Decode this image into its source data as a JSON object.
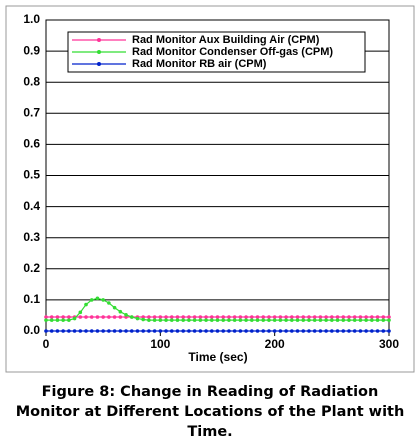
{
  "chart_data": {
    "type": "line",
    "xlabel": "Time (sec)",
    "caption": "Figure 8: Change in Reading of Radiation Monitor at Different Locations of the Plant with Time.",
    "x": [
      0,
      5,
      10,
      15,
      20,
      25,
      30,
      35,
      40,
      45,
      50,
      55,
      60,
      65,
      70,
      75,
      80,
      85,
      90,
      95,
      100,
      105,
      110,
      115,
      120,
      125,
      130,
      135,
      140,
      145,
      150,
      155,
      160,
      165,
      170,
      175,
      180,
      185,
      190,
      195,
      200,
      205,
      210,
      215,
      220,
      225,
      230,
      235,
      240,
      245,
      250,
      255,
      260,
      265,
      270,
      275,
      280,
      285,
      290,
      295,
      300
    ],
    "series": [
      {
        "name": "Rad Monitor Aux Building Air (CPM)",
        "color": "#ff3399",
        "values": [
          0.045,
          0.045,
          0.045,
          0.045,
          0.045,
          0.045,
          0.045,
          0.045,
          0.045,
          0.045,
          0.045,
          0.045,
          0.045,
          0.045,
          0.045,
          0.045,
          0.045,
          0.045,
          0.045,
          0.045,
          0.045,
          0.045,
          0.045,
          0.045,
          0.045,
          0.045,
          0.045,
          0.045,
          0.045,
          0.045,
          0.045,
          0.045,
          0.045,
          0.045,
          0.045,
          0.045,
          0.045,
          0.045,
          0.045,
          0.045,
          0.045,
          0.045,
          0.045,
          0.045,
          0.045,
          0.045,
          0.045,
          0.045,
          0.045,
          0.045,
          0.045,
          0.045,
          0.045,
          0.045,
          0.045,
          0.045,
          0.045,
          0.045,
          0.045,
          0.045,
          0.045
        ]
      },
      {
        "name": "Rad Monitor Condenser Off-gas (CPM)",
        "color": "#33dd33",
        "values": [
          0.035,
          0.035,
          0.035,
          0.035,
          0.035,
          0.04,
          0.06,
          0.085,
          0.1,
          0.105,
          0.1,
          0.09,
          0.075,
          0.062,
          0.052,
          0.045,
          0.04,
          0.037,
          0.035,
          0.035,
          0.035,
          0.035,
          0.035,
          0.035,
          0.035,
          0.035,
          0.035,
          0.035,
          0.035,
          0.035,
          0.035,
          0.035,
          0.035,
          0.035,
          0.035,
          0.035,
          0.035,
          0.035,
          0.035,
          0.035,
          0.035,
          0.035,
          0.035,
          0.035,
          0.035,
          0.035,
          0.035,
          0.035,
          0.035,
          0.035,
          0.035,
          0.035,
          0.035,
          0.035,
          0.035,
          0.035,
          0.035,
          0.035,
          0.035,
          0.035,
          0.035
        ]
      },
      {
        "name": "Rad Monitor RB air (CPM)",
        "color": "#0022cc",
        "values": [
          0,
          0,
          0,
          0,
          0,
          0,
          0,
          0,
          0,
          0,
          0,
          0,
          0,
          0,
          0,
          0,
          0,
          0,
          0,
          0,
          0,
          0,
          0,
          0,
          0,
          0,
          0,
          0,
          0,
          0,
          0,
          0,
          0,
          0,
          0,
          0,
          0,
          0,
          0,
          0,
          0,
          0,
          0,
          0,
          0,
          0,
          0,
          0,
          0,
          0,
          0,
          0,
          0,
          0,
          0,
          0,
          0,
          0,
          0,
          0,
          0
        ]
      }
    ],
    "xlim": [
      0,
      300
    ],
    "xticks": [
      0,
      100,
      200,
      300
    ],
    "ylim": [
      0,
      1
    ],
    "yticks": [
      {
        "value": 0,
        "label": "0.0"
      },
      {
        "value": 0.1,
        "label": "0.1"
      },
      {
        "value": 0.2,
        "label": "0.2"
      },
      {
        "value": 0.3,
        "label": "0.3"
      },
      {
        "value": 0.4,
        "label": "0.4"
      },
      {
        "value": 0.5,
        "label": "0.5"
      },
      {
        "value": 0.6,
        "label": "0.6"
      },
      {
        "value": 0.7,
        "label": "0.7"
      },
      {
        "value": 0.8,
        "label": "0.8"
      },
      {
        "value": 0.9,
        "label": "0.9"
      },
      {
        "value": 1,
        "label": "1.0"
      }
    ],
    "grid": true,
    "legend": "top"
  }
}
